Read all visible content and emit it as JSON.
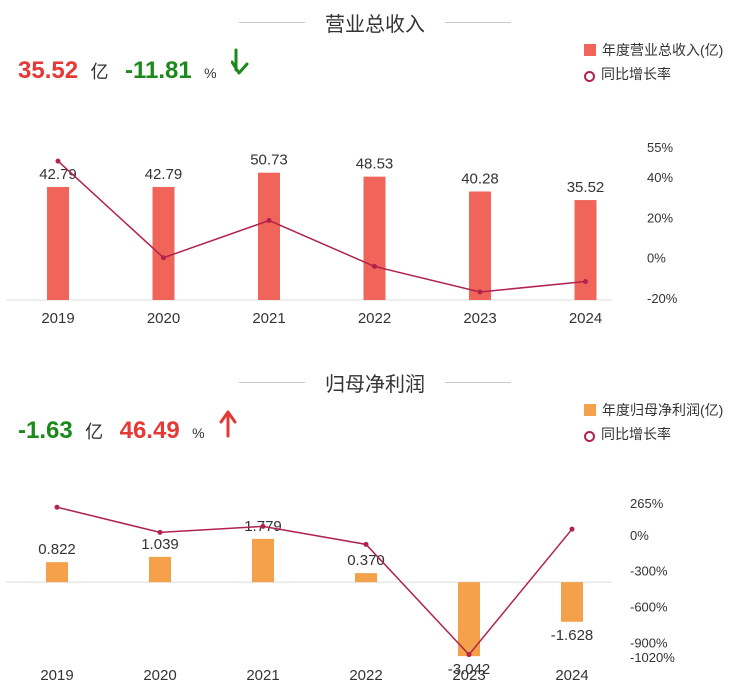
{
  "charts": [
    {
      "title": "营业总收入",
      "summary": {
        "value": "35.52",
        "value_unit": "亿",
        "change": "-11.81",
        "change_unit": "%",
        "value_color": "#e53935",
        "change_color": "#1b8a1b",
        "arrow": "down-arrow-icon",
        "arrow_color": "#1b8a1b"
      },
      "legend": {
        "bar": "年度营业总收入(亿)",
        "line": "同比增长率"
      }
    },
    {
      "title": "归母净利润",
      "summary": {
        "value": "-1.63",
        "value_unit": "亿",
        "change": "46.49",
        "change_unit": "%",
        "value_color": "#1b8a1b",
        "change_color": "#e53935",
        "arrow": "up-arrow-icon",
        "arrow_color": "#e53935"
      },
      "legend": {
        "bar": "年度归母净利润(亿)",
        "line": "同比增长率"
      }
    }
  ],
  "chart_data": [
    {
      "type": "bar",
      "title": "营业总收入",
      "categories": [
        "2019",
        "2020",
        "2021",
        "2022",
        "2023",
        "2024"
      ],
      "series": [
        {
          "name": "年度营业总收入(亿)",
          "type": "bar",
          "color": "#f0645a",
          "values": [
            42.79,
            42.79,
            50.73,
            48.53,
            40.28,
            35.52
          ],
          "labels": [
            "42.79",
            "42.79",
            "50.73",
            "48.53",
            "40.28",
            "35.52"
          ]
        },
        {
          "name": "同比增长率",
          "type": "line",
          "color": "#b0234d",
          "values": [
            48,
            0,
            18.5,
            -4.3,
            -17,
            -11.81
          ]
        }
      ],
      "bar_range": [
        -20,
        80
      ],
      "right_axis": {
        "ticks": [
          55,
          40,
          20,
          0,
          -20
        ],
        "tick_labels": [
          "55%",
          "40%",
          "20%",
          "0%",
          "-20%"
        ],
        "range": [
          -20,
          55
        ]
      }
    },
    {
      "type": "bar",
      "title": "归母净利润",
      "categories": [
        "2019",
        "2020",
        "2021",
        "2022",
        "2023",
        "2024"
      ],
      "series": [
        {
          "name": "年度归母净利润(亿)",
          "type": "bar",
          "color": "#f5a04a",
          "values": [
            0.822,
            1.039,
            1.779,
            0.37,
            -3.042,
            -1.628
          ],
          "labels": [
            "0.822",
            "1.039",
            "1.779",
            "0.370",
            "-3.042",
            "-1.628"
          ]
        },
        {
          "name": "同比增长率",
          "type": "line",
          "color": "#b0234d",
          "values": [
            230,
            20,
            70,
            -80,
            -1000,
            46.49
          ]
        }
      ],
      "bar_range": [
        -3.2,
        4.2
      ],
      "right_axis": {
        "ticks": [
          265,
          0,
          -300,
          -600,
          -900,
          -1020
        ],
        "tick_labels": [
          "265%",
          "0%",
          "-300%",
          "-600%",
          "-900%",
          "-1020%"
        ],
        "range": [
          -1020,
          265
        ]
      }
    }
  ]
}
